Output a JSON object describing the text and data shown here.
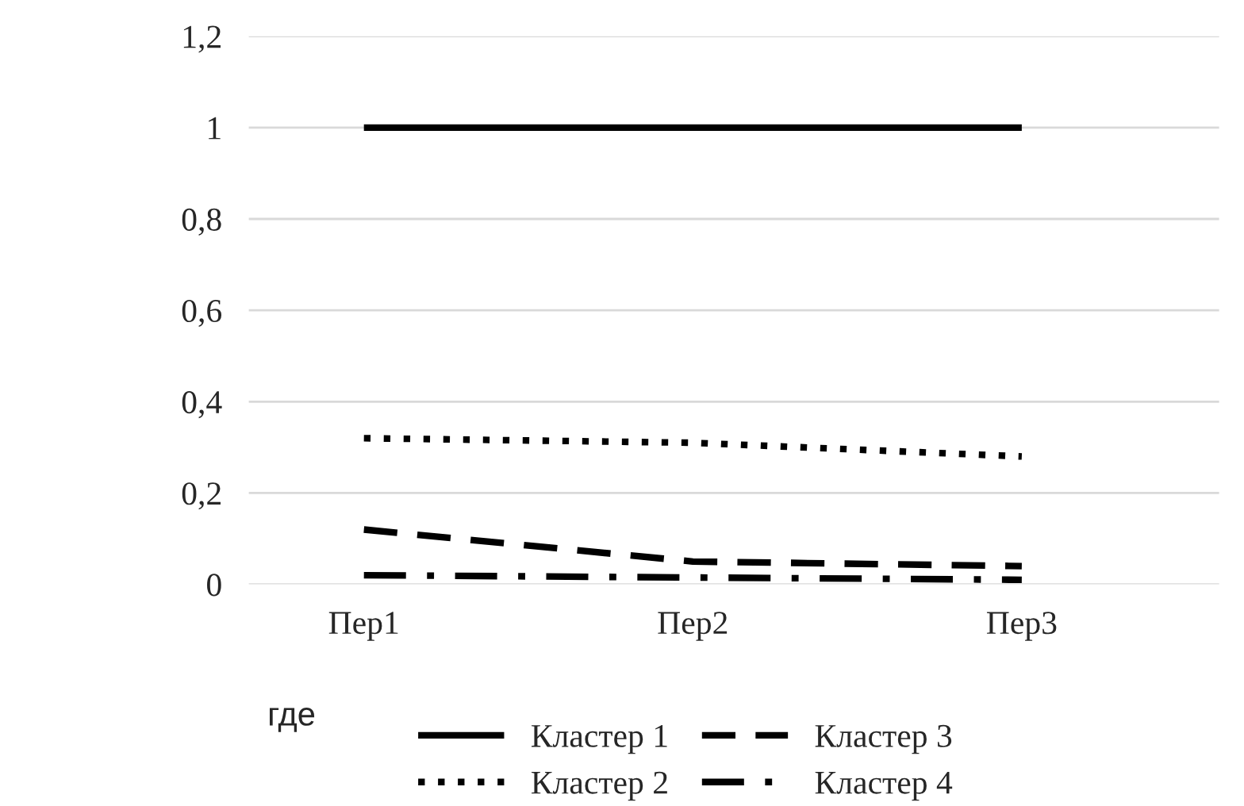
{
  "chart_data": {
    "type": "line",
    "categories": [
      "Пер1",
      "Пер2",
      "Пер3"
    ],
    "series": [
      {
        "name": "Кластер 1",
        "color": "#000000",
        "line_style": "solid",
        "values": [
          1,
          1,
          1
        ]
      },
      {
        "name": "Кластер 2",
        "color": "#000000",
        "line_style": "dotted",
        "values": [
          0.32,
          0.31,
          0.28
        ]
      },
      {
        "name": "Кластер 3",
        "color": "#000000",
        "line_style": "dashed",
        "values": [
          0.12,
          0.05,
          0.04
        ]
      },
      {
        "name": "Кластер 4",
        "color": "#000000",
        "line_style": "dashdot",
        "values": [
          0.02,
          0.015,
          0.01
        ]
      }
    ],
    "ylim": [
      0,
      1.2
    ],
    "yticks": [
      {
        "value": 0,
        "label": "0"
      },
      {
        "value": 0.2,
        "label": "0,2"
      },
      {
        "value": 0.4,
        "label": "0,4"
      },
      {
        "value": 0.6,
        "label": "0,6"
      },
      {
        "value": 0.8,
        "label": "0,8"
      },
      {
        "value": 1,
        "label": "1"
      },
      {
        "value": 1.2,
        "label": "1,2"
      }
    ],
    "grid": "y",
    "legend": "bottom",
    "marker": "none",
    "annotations": [
      "где"
    ]
  }
}
